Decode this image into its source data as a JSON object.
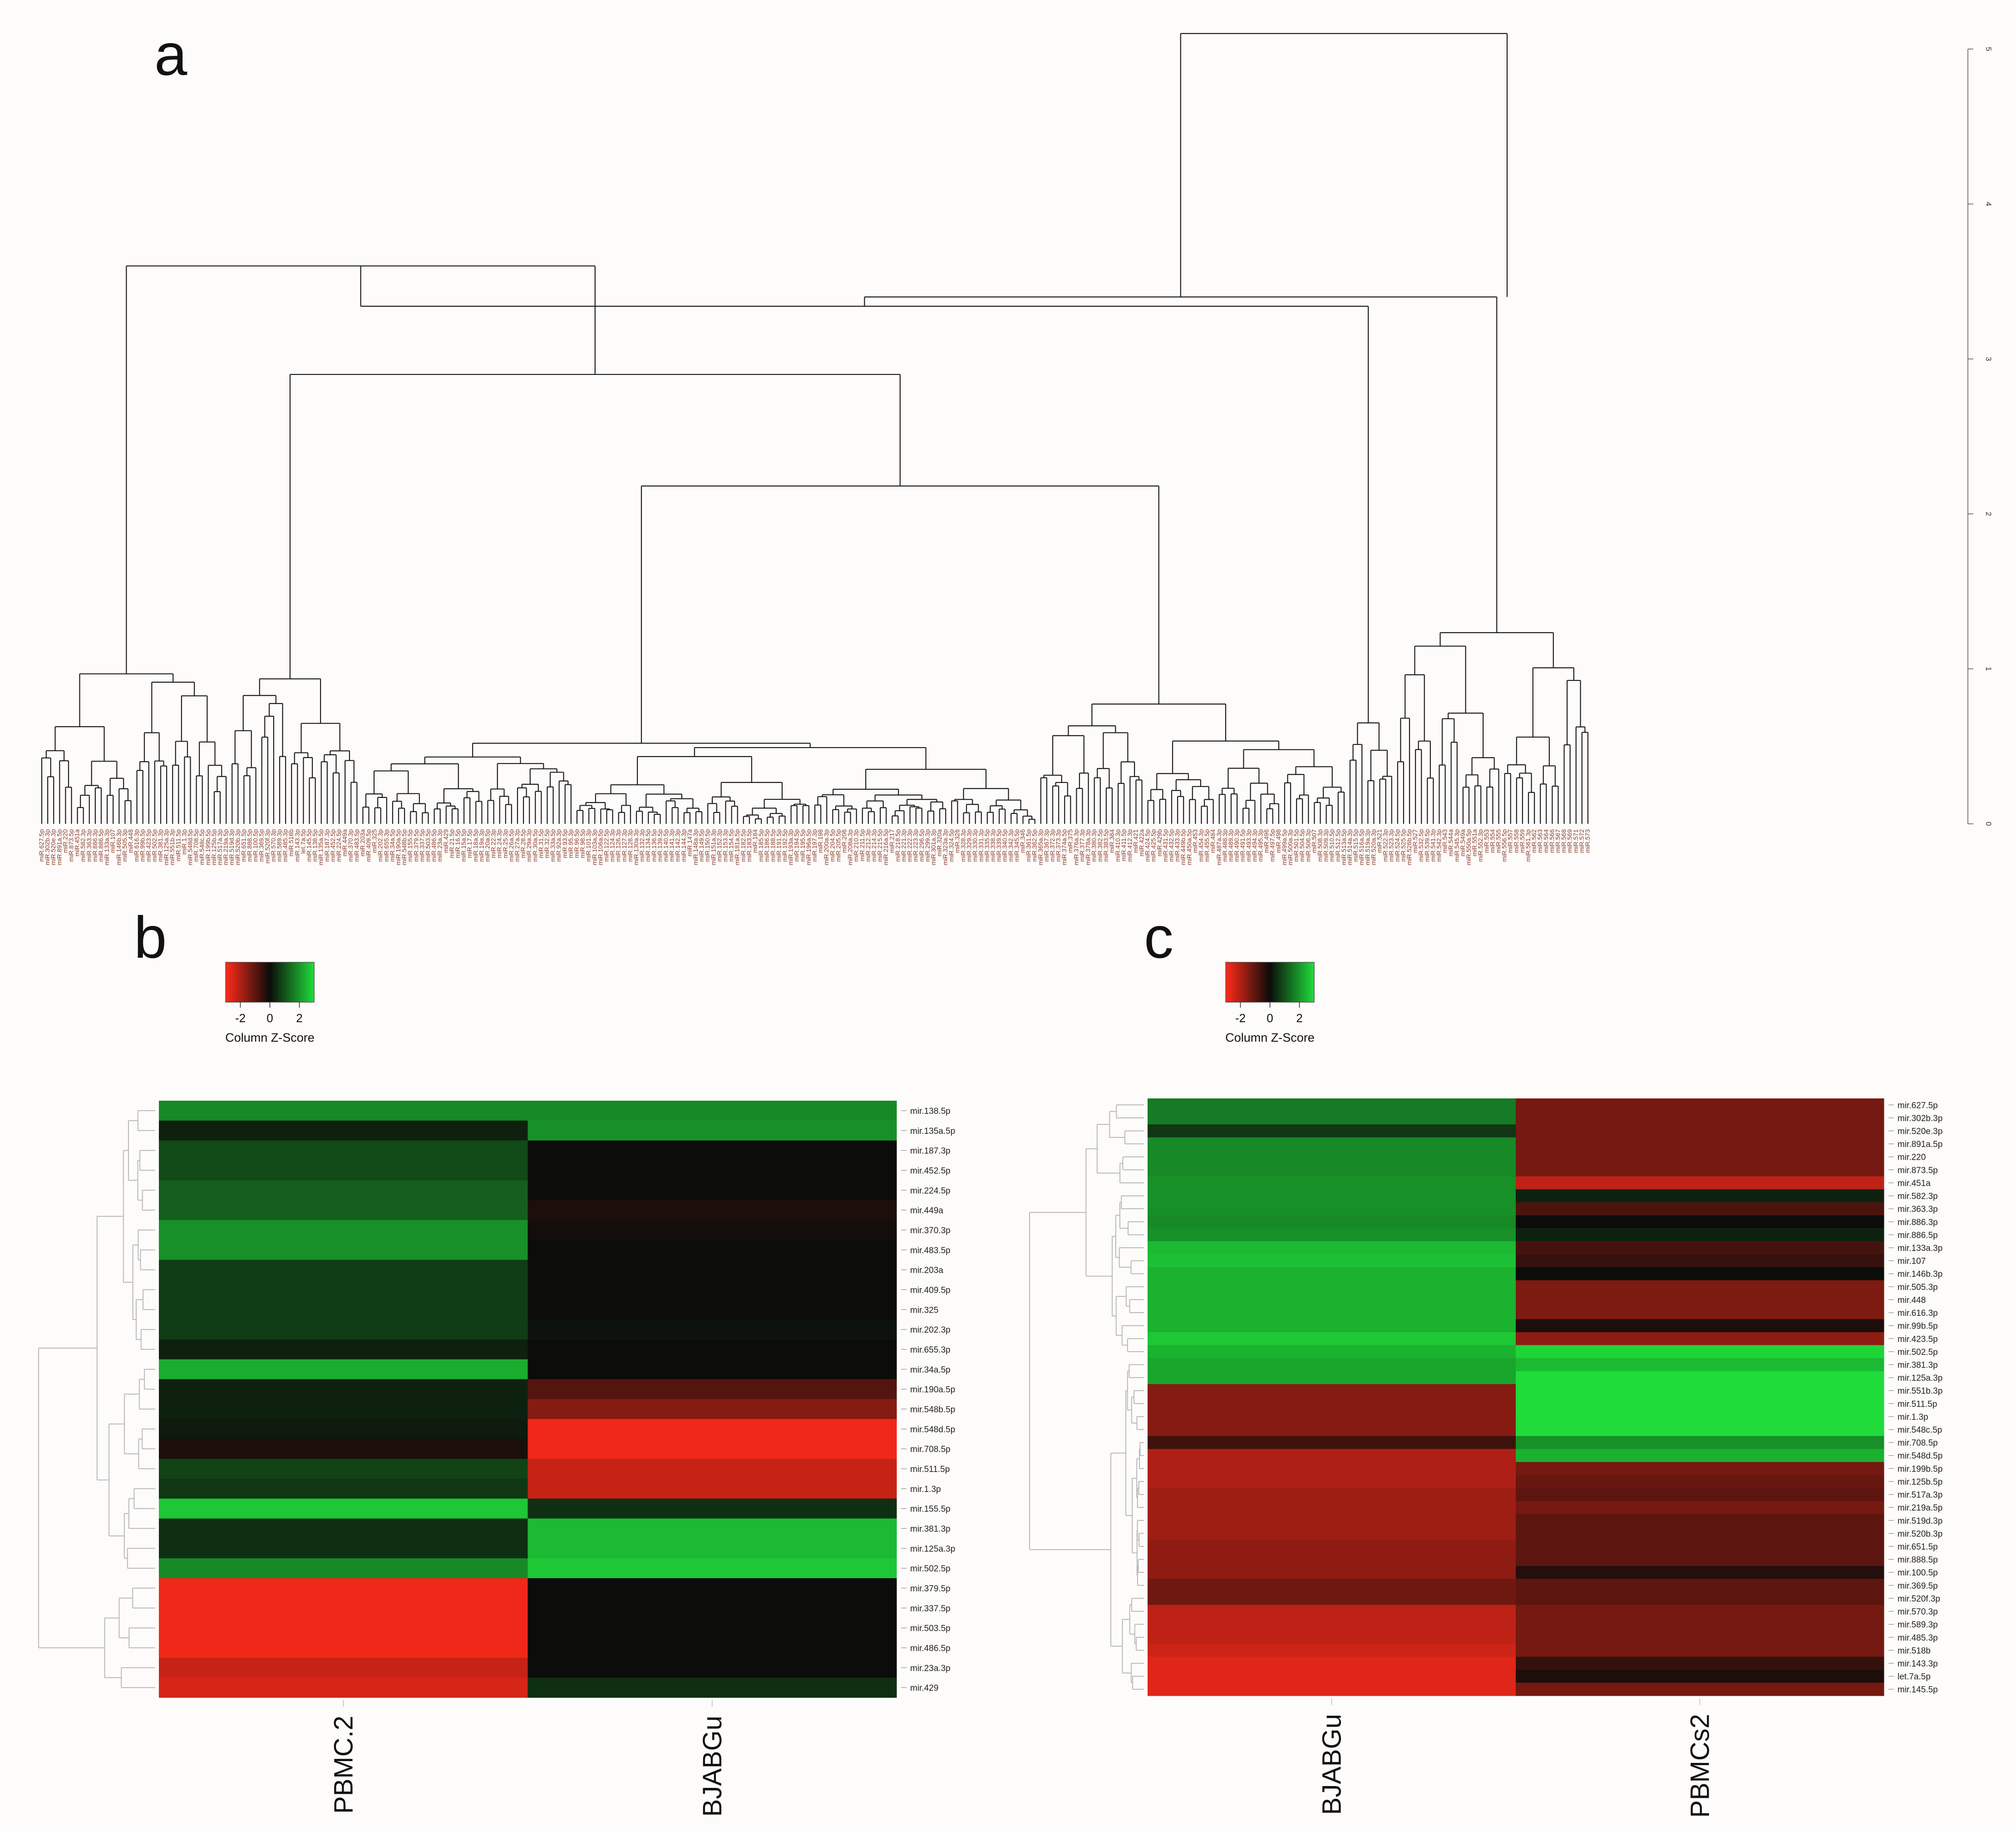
{
  "chart_data": [
    {
      "panel": "a",
      "type": "dendrogram",
      "axis_ticks": [
        "0",
        "1",
        "2",
        "3",
        "4",
        "5"
      ],
      "axis_range": [
        0,
        5
      ],
      "grid": false,
      "leaves": [
        "miR.627.5p",
        "miR.302b.3p",
        "miR.520e.3p",
        "miR.891a.5p",
        "miR.220",
        "miR.873.5p",
        "miR.451a",
        "miR.582.3p",
        "miR.363.3p",
        "miR.886.3p",
        "miR.886.5p",
        "miR.133a.3p",
        "miR.107",
        "miR.146b.3p",
        "miR.505.3p",
        "miR.448",
        "miR.616.3p",
        "miR.99b.5p",
        "miR.423.5p",
        "miR.502.5p",
        "miR.381.3p",
        "miR.125a.3p",
        "miR.551b.3p",
        "miR.511.5p",
        "miR.1.3p",
        "miR.548d.5p",
        "miR.708.5p",
        "miR.548c.5p",
        "miR.199b.5p",
        "miR.125b.5p",
        "miR.517a.3p",
        "miR.219a.5p",
        "miR.519d.3p",
        "miR.520b.3p",
        "miR.651.5p",
        "miR.888.5p",
        "miR.100.5p",
        "miR.369.5p",
        "miR.520f.3p",
        "miR.570.3p",
        "miR.589.3p",
        "miR.485.3p",
        "miR.518b",
        "miR.143.3p",
        "let.7a.5p",
        "miR.145.5p",
        "miR.138.5p",
        "miR.135a.5p",
        "miR.187.3p",
        "miR.452.5p",
        "miR.224.5p",
        "miR.449a",
        "miR.370.3p",
        "miR.483.5p",
        "miR.203a",
        "miR.409.5p",
        "miR.325",
        "miR.202.3p",
        "miR.655.3p",
        "miR.34a.5p",
        "miR.190a.5p",
        "miR.548b.5p",
        "miR.155.5p",
        "miR.379.5p",
        "miR.337.5p",
        "miR.503.5p",
        "miR.486.5p",
        "miR.23a.3p",
        "miR.429",
        "miR.21.5p",
        "miR.16.5p",
        "miR.15a.5p",
        "miR.17.5p",
        "miR.18a.5p",
        "miR.19a.3p",
        "miR.20a.5p",
        "miR.22.3p",
        "miR.24.3p",
        "miR.25.3p",
        "miR.26a.5p",
        "miR.27a.3p",
        "miR.28.5p",
        "miR.29a.3p",
        "miR.30a.5p",
        "miR.31.5p",
        "miR.32.5p",
        "miR.33a.5p",
        "miR.92a.3p",
        "miR.93.5p",
        "miR.95.3p",
        "miR.96.5p",
        "miR.98.5p",
        "miR.101.3p",
        "miR.103a.3p",
        "miR.106a.5p",
        "miR.122.5p",
        "miR.124.3p",
        "miR.126.3p",
        "miR.127.3p",
        "miR.128.3p",
        "miR.130a.3p",
        "miR.132.3p",
        "miR.134.5p",
        "miR.136.5p",
        "miR.139.5p",
        "miR.140.5p",
        "miR.141.3p",
        "miR.142.3p",
        "miR.144.3p",
        "miR.147a",
        "miR.148a.3p",
        "miR.149.5p",
        "miR.150.5p",
        "miR.151a.3p",
        "miR.152.3p",
        "miR.153.3p",
        "miR.154.5p",
        "miR.181a.5p",
        "miR.182.5p",
        "miR.183.5p",
        "miR.184",
        "miR.185.5p",
        "miR.186.5p",
        "miR.188.5p",
        "miR.191.5p",
        "miR.192.5p",
        "miR.193a.3p",
        "miR.194.5p",
        "miR.195.5p",
        "miR.196a.5p",
        "miR.197.3p",
        "miR.198",
        "miR.200a.3p",
        "miR.204.5p",
        "miR.205.5p",
        "miR.206",
        "miR.208a.3p",
        "miR.210.3p",
        "miR.211.5p",
        "miR.212.3p",
        "miR.214.3p",
        "miR.215.5p",
        "miR.216a.5p",
        "miR.217",
        "miR.218.5p",
        "miR.221.3p",
        "miR.222.3p",
        "miR.223.3p",
        "miR.296.5p",
        "miR.299.3p",
        "miR.301a.3p",
        "miR.320a",
        "miR.323a.3p",
        "miR.324.5p",
        "miR.326",
        "miR.328.3p",
        "miR.329.3p",
        "miR.330.3p",
        "miR.331.3p",
        "miR.335.5p",
        "miR.338.3p",
        "miR.339.5p",
        "miR.340.5p",
        "miR.342.3p",
        "miR.345.5p",
        "miR.346",
        "miR.361.5p",
        "miR.362.5p",
        "miR.365a.3p",
        "miR.367.3p",
        "miR.372.3p",
        "miR.373.3p",
        "miR.374a.5p",
        "miR.375",
        "miR.376a.3p",
        "miR.377.3p",
        "miR.378a.3p",
        "miR.380.3p",
        "miR.382.5p",
        "miR.383.5p",
        "miR.384",
        "miR.410.3p",
        "miR.411.5p",
        "miR.412.3p",
        "miR.421",
        "miR.422a",
        "miR.424.5p",
        "miR.425.5p",
        "miR.429b",
        "miR.431.5p",
        "miR.432.5p",
        "miR.433.3p",
        "miR.449b.5p",
        "miR.450a.5p",
        "miR.453",
        "miR.454.3p",
        "miR.455.5p",
        "miR.484",
        "miR.487a.3p",
        "miR.488.3p",
        "miR.489.3p",
        "miR.490.3p",
        "miR.491.5p",
        "miR.493.3p",
        "miR.494.3p",
        "miR.495.3p",
        "miR.496",
        "miR.497.5p",
        "miR.498",
        "miR.499a.5p",
        "miR.500a.3p",
        "miR.501.5p",
        "miR.504.5p",
        "miR.506.3p",
        "miR.507",
        "miR.508.3p",
        "miR.509.3p",
        "miR.510.5p",
        "miR.512.5p",
        "miR.513a.5p",
        "miR.514a.3p",
        "miR.515.5p",
        "miR.516a.5p",
        "miR.519a.3p",
        "miR.520a.3p",
        "miR.521",
        "miR.522.3p",
        "miR.523.3p",
        "miR.524.5p",
        "miR.525.5p",
        "miR.526b.5p",
        "miR.527",
        "miR.532.5p",
        "miR.539.5p",
        "miR.541.3p",
        "miR.542.3p",
        "miR.543",
        "miR.544a",
        "miR.545.3p",
        "miR.549a",
        "miR.550a.5p",
        "miR.551a",
        "miR.552.3p",
        "miR.553",
        "miR.554",
        "miR.555",
        "miR.556.5p",
        "miR.557",
        "miR.558",
        "miR.559",
        "miR.561.3p",
        "miR.562",
        "miR.563",
        "miR.564",
        "miR.566",
        "miR.567",
        "miR.568",
        "miR.569",
        "miR.571",
        "miR.572",
        "miR.573"
      ]
    },
    {
      "panel": "b",
      "type": "heatmap",
      "columns": [
        "PBMC.2",
        "BJABGu"
      ],
      "rows": [
        "mir.138.5p",
        "mir.135a.5p",
        "mir.187.3p",
        "mir.452.5p",
        "mir.224.5p",
        "mir.449a",
        "mir.370.3p",
        "mir.483.5p",
        "mir.203a",
        "mir.409.5p",
        "mir.325",
        "mir.202.3p",
        "mir.655.3p",
        "mir.34a.5p",
        "mir.190a.5p",
        "mir.548b.5p",
        "mir.548d.5p",
        "mir.708.5p",
        "mir.511.5p",
        "mir.1.3p",
        "mir.155.5p",
        "mir.381.3p",
        "mir.125a.3p",
        "mir.502.5p",
        "mir.379.5p",
        "mir.337.5p",
        "mir.503.5p",
        "mir.486.5p",
        "mir.23a.3p",
        "mir.429"
      ],
      "values": [
        [
          1.8,
          1.8
        ],
        [
          0.3,
          1.9
        ],
        [
          0.9,
          0
        ],
        [
          0.9,
          0
        ],
        [
          1.2,
          0
        ],
        [
          1.2,
          -0.2
        ],
        [
          1.9,
          -0.1
        ],
        [
          1.9,
          0
        ],
        [
          0.7,
          0
        ],
        [
          0.7,
          0
        ],
        [
          0.7,
          0
        ],
        [
          0.7,
          0.1
        ],
        [
          0.3,
          0
        ],
        [
          2.3,
          0
        ],
        [
          0.3,
          -0.9
        ],
        [
          0.3,
          -1.5
        ],
        [
          0.2,
          -2.8
        ],
        [
          -0.2,
          -2.8
        ],
        [
          0.8,
          -2.3
        ],
        [
          0.6,
          -2.3
        ],
        [
          2.7,
          0.5
        ],
        [
          0.5,
          2.5
        ],
        [
          0.5,
          2.5
        ],
        [
          1.8,
          2.7
        ],
        [
          -2.8,
          0
        ],
        [
          -2.8,
          0
        ],
        [
          -2.8,
          0
        ],
        [
          -2.8,
          0
        ],
        [
          -2.3,
          0
        ],
        [
          -2.5,
          0.5
        ]
      ],
      "color_key": {
        "title": "Column Z-Score",
        "ticks": [
          "-2",
          "0",
          "2"
        ],
        "low": "#ff2a1a",
        "mid": "#0c0c0a",
        "high": "#1fdc3a"
      }
    },
    {
      "panel": "c",
      "type": "heatmap",
      "columns": [
        "BJABGu",
        "PBMCs2"
      ],
      "rows": [
        "mir.627.5p",
        "mir.302b.3p",
        "mir.520e.3p",
        "mir.891a.5p",
        "mir.220",
        "mir.873.5p",
        "mir.451a",
        "mir.582.3p",
        "mir.363.3p",
        "mir.886.3p",
        "mir.886.5p",
        "mir.133a.3p",
        "mir.107",
        "mir.146b.3p",
        "mir.505.3p",
        "mir.448",
        "mir.616.3p",
        "mir.99b.5p",
        "mir.423.5p",
        "mir.502.5p",
        "mir.381.3p",
        "mir.125a.3p",
        "mir.551b.3p",
        "mir.511.5p",
        "mir.1.3p",
        "mir.548c.5p",
        "mir.708.5p",
        "mir.548d.5p",
        "mir.199b.5p",
        "mir.125b.5p",
        "mir.517a.3p",
        "mir.219a.5p",
        "mir.519d.3p",
        "mir.520b.3p",
        "mir.651.5p",
        "mir.888.5p",
        "mir.100.5p",
        "mir.369.5p",
        "mir.520f.3p",
        "mir.570.3p",
        "mir.589.3p",
        "mir.485.3p",
        "mir.518b",
        "mir.143.3p",
        "let.7a.5p",
        "mir.145.5p"
      ],
      "values": [
        [
          1.6,
          -1.3
        ],
        [
          1.6,
          -1.3
        ],
        [
          0.6,
          -1.3
        ],
        [
          1.8,
          -1.3
        ],
        [
          1.8,
          -1.3
        ],
        [
          1.8,
          -1.3
        ],
        [
          1.9,
          -2.2
        ],
        [
          1.9,
          0.3
        ],
        [
          1.9,
          -0.8
        ],
        [
          1.8,
          0
        ],
        [
          1.9,
          0.3
        ],
        [
          2.5,
          -0.7
        ],
        [
          2.6,
          -0.5
        ],
        [
          2.4,
          0
        ],
        [
          2.4,
          -1.4
        ],
        [
          2.4,
          -1.4
        ],
        [
          2.4,
          -1.4
        ],
        [
          2.4,
          -0.2
        ],
        [
          2.7,
          -1.6
        ],
        [
          2.4,
          2.9
        ],
        [
          2.2,
          2.5
        ],
        [
          2.2,
          3.1
        ],
        [
          -1.5,
          3.1
        ],
        [
          -1.5,
          3.1
        ],
        [
          -1.5,
          3.1
        ],
        [
          -1.5,
          3.1
        ],
        [
          -0.6,
          1.9
        ],
        [
          -2.0,
          2.4
        ],
        [
          -2.0,
          -1.3
        ],
        [
          -2.0,
          -1.1
        ],
        [
          -1.8,
          -1.0
        ],
        [
          -1.8,
          -1.3
        ],
        [
          -1.8,
          -1.0
        ],
        [
          -1.8,
          -1.0
        ],
        [
          -1.6,
          -1.0
        ],
        [
          -1.6,
          -1.0
        ],
        [
          -1.6,
          -0.3
        ],
        [
          -1.2,
          -1.0
        ],
        [
          -1.2,
          -1.0
        ],
        [
          -2.2,
          -1.3
        ],
        [
          -2.2,
          -1.3
        ],
        [
          -2.2,
          -1.3
        ],
        [
          -2.4,
          -1.3
        ],
        [
          -2.6,
          -0.5
        ],
        [
          -2.6,
          -0.2
        ],
        [
          -2.6,
          -1.3
        ]
      ],
      "color_key": {
        "title": "Column Z-Score",
        "ticks": [
          "-2",
          "0",
          "2"
        ],
        "low": "#ff2a1a",
        "mid": "#0c0c0a",
        "high": "#1fdc3a"
      }
    }
  ],
  "panel_labels": {
    "a": "a",
    "b": "b",
    "c": "c"
  }
}
